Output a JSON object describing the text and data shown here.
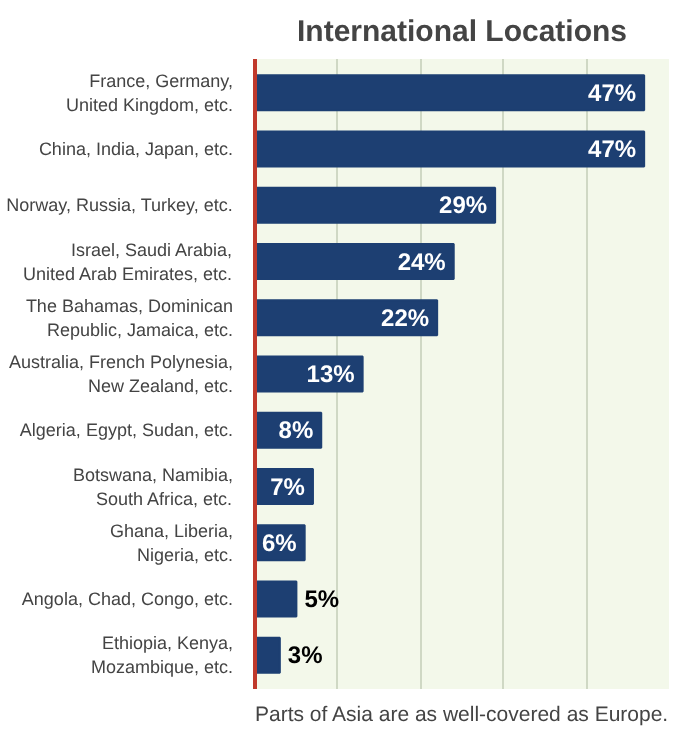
{
  "chart_data": {
    "type": "bar",
    "orientation": "horizontal",
    "title": "International Locations",
    "categories": [
      "France, Germany,\nUnited Kingdom, etc.",
      "China, India, Japan, etc.",
      "Norway, Russia, Turkey, etc.",
      "Israel, Saudi Arabia,\nUnited Arab Emirates, etc.",
      "The Bahamas, Dominican\nRepublic, Jamaica, etc.",
      "Australia, French Polynesia,\nNew Zealand, etc.",
      "Algeria, Egypt, Sudan, etc.",
      "Botswana, Namibia,\nSouth Africa, etc.",
      "Ghana, Liberia,\nNigeria, etc.",
      "Angola, Chad, Congo, etc.",
      "Ethiopia, Kenya,\nMozambique, etc."
    ],
    "values": [
      47,
      47,
      29,
      24,
      22,
      13,
      8,
      7,
      6,
      5,
      3
    ],
    "value_labels": [
      "47%",
      "47%",
      "29%",
      "24%",
      "22%",
      "13%",
      "8%",
      "7%",
      "6%",
      "5%",
      "3%"
    ],
    "color": "#1d3f72",
    "xlim": [
      0,
      50
    ],
    "xticks": [
      {
        "value": 10,
        "label": null
      },
      {
        "value": 20,
        "label": null
      },
      {
        "value": 30,
        "label": null
      },
      {
        "value": 40,
        "label": null
      }
    ],
    "tick_labels": "y",
    "grid": "x",
    "annotations": [
      "Parts of Asia are as well-covered as Europe."
    ]
  }
}
